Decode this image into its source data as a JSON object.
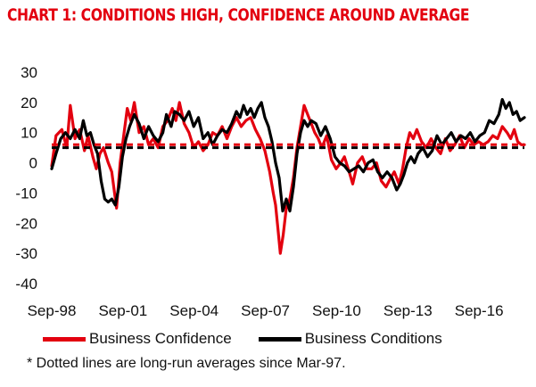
{
  "chart_data": {
    "type": "line",
    "title": "CHART 1: CONDITIONS HIGH, CONFIDENCE AROUND AVERAGE",
    "xlabel": "",
    "ylabel": "",
    "ylim": [
      -40,
      30
    ],
    "yticks": [
      30,
      20,
      10,
      0,
      -10,
      -20,
      -30,
      -40
    ],
    "xlim": [
      1998.67,
      2018.58
    ],
    "xticks": [
      {
        "label": "Sep-98",
        "value": 1998.67
      },
      {
        "label": "Sep-01",
        "value": 2001.67
      },
      {
        "label": "Sep-04",
        "value": 2004.67
      },
      {
        "label": "Sep-07",
        "value": 2007.67
      },
      {
        "label": "Sep-10",
        "value": 2010.67
      },
      {
        "label": "Sep-13",
        "value": 2013.67
      },
      {
        "label": "Sep-16",
        "value": 2016.67
      }
    ],
    "grid": false,
    "legend_position": "bottom",
    "series": [
      {
        "name": "Business Confidence",
        "color": "#e3000f",
        "average": 6,
        "points": [
          [
            1998.67,
            -1
          ],
          [
            1998.85,
            9
          ],
          [
            1999.1,
            11
          ],
          [
            1999.3,
            5
          ],
          [
            1999.45,
            19
          ],
          [
            1999.65,
            8
          ],
          [
            1999.85,
            11
          ],
          [
            2000.05,
            4
          ],
          [
            2000.2,
            9
          ],
          [
            2000.4,
            2
          ],
          [
            2000.55,
            -2
          ],
          [
            2000.7,
            3
          ],
          [
            2000.85,
            5
          ],
          [
            2001.05,
            0
          ],
          [
            2001.2,
            -3
          ],
          [
            2001.4,
            -15
          ],
          [
            2001.55,
            0
          ],
          [
            2001.7,
            9
          ],
          [
            2001.85,
            18
          ],
          [
            2002.0,
            14
          ],
          [
            2002.15,
            20
          ],
          [
            2002.35,
            10
          ],
          [
            2002.55,
            12
          ],
          [
            2002.75,
            6
          ],
          [
            2002.95,
            8
          ],
          [
            2003.15,
            5
          ],
          [
            2003.35,
            12
          ],
          [
            2003.55,
            14
          ],
          [
            2003.75,
            18
          ],
          [
            2003.9,
            14
          ],
          [
            2004.05,
            20
          ],
          [
            2004.25,
            13
          ],
          [
            2004.45,
            10
          ],
          [
            2004.65,
            5
          ],
          [
            2004.85,
            7
          ],
          [
            2005.05,
            4
          ],
          [
            2005.25,
            6
          ],
          [
            2005.45,
            10
          ],
          [
            2005.65,
            9
          ],
          [
            2005.85,
            12
          ],
          [
            2006.05,
            8
          ],
          [
            2006.25,
            12
          ],
          [
            2006.45,
            15
          ],
          [
            2006.65,
            12
          ],
          [
            2006.85,
            14
          ],
          [
            2007.05,
            15
          ],
          [
            2007.25,
            11
          ],
          [
            2007.45,
            8
          ],
          [
            2007.65,
            4
          ],
          [
            2007.85,
            -3
          ],
          [
            2008.0,
            -10
          ],
          [
            2008.1,
            -14
          ],
          [
            2008.2,
            -22
          ],
          [
            2008.3,
            -30
          ],
          [
            2008.42,
            -24
          ],
          [
            2008.55,
            -15
          ],
          [
            2008.7,
            -12
          ],
          [
            2008.85,
            -5
          ],
          [
            2009.0,
            5
          ],
          [
            2009.15,
            12
          ],
          [
            2009.3,
            19
          ],
          [
            2009.45,
            16
          ],
          [
            2009.6,
            13
          ],
          [
            2009.75,
            10
          ],
          [
            2009.9,
            8
          ],
          [
            2010.05,
            5
          ],
          [
            2010.25,
            9
          ],
          [
            2010.45,
            1
          ],
          [
            2010.65,
            -2
          ],
          [
            2010.85,
            0
          ],
          [
            2011.0,
            2
          ],
          [
            2011.2,
            -3
          ],
          [
            2011.35,
            -7
          ],
          [
            2011.55,
            0
          ],
          [
            2011.75,
            2
          ],
          [
            2011.95,
            -2
          ],
          [
            2012.15,
            -2
          ],
          [
            2012.35,
            0
          ],
          [
            2012.55,
            -6
          ],
          [
            2012.75,
            -8
          ],
          [
            2012.95,
            -5
          ],
          [
            2013.1,
            -3
          ],
          [
            2013.3,
            -7
          ],
          [
            2013.45,
            -2
          ],
          [
            2013.6,
            5
          ],
          [
            2013.75,
            10
          ],
          [
            2013.9,
            8
          ],
          [
            2014.05,
            11
          ],
          [
            2014.25,
            7
          ],
          [
            2014.45,
            5
          ],
          [
            2014.65,
            8
          ],
          [
            2014.85,
            5
          ],
          [
            2015.05,
            3
          ],
          [
            2015.25,
            8
          ],
          [
            2015.45,
            4
          ],
          [
            2015.65,
            6
          ],
          [
            2015.85,
            9
          ],
          [
            2016.05,
            5
          ],
          [
            2016.25,
            8
          ],
          [
            2016.45,
            6
          ],
          [
            2016.65,
            7
          ],
          [
            2016.85,
            6
          ],
          [
            2017.05,
            7
          ],
          [
            2017.25,
            9
          ],
          [
            2017.45,
            8
          ],
          [
            2017.65,
            12
          ],
          [
            2017.85,
            10
          ],
          [
            2018.0,
            8
          ],
          [
            2018.15,
            11
          ],
          [
            2018.3,
            7
          ],
          [
            2018.45,
            6
          ],
          [
            2018.58,
            6
          ]
        ]
      },
      {
        "name": "Business Conditions",
        "color": "#000000",
        "average": 5,
        "points": [
          [
            1998.67,
            -2
          ],
          [
            1998.85,
            3
          ],
          [
            1999.05,
            8
          ],
          [
            1999.25,
            10
          ],
          [
            1999.45,
            8
          ],
          [
            1999.65,
            11
          ],
          [
            1999.85,
            8
          ],
          [
            2000.0,
            14
          ],
          [
            2000.15,
            9
          ],
          [
            2000.3,
            10
          ],
          [
            2000.45,
            6
          ],
          [
            2000.6,
            3
          ],
          [
            2000.75,
            -6
          ],
          [
            2000.9,
            -12
          ],
          [
            2001.05,
            -13
          ],
          [
            2001.2,
            -12
          ],
          [
            2001.35,
            -14
          ],
          [
            2001.5,
            -8
          ],
          [
            2001.65,
            2
          ],
          [
            2001.8,
            8
          ],
          [
            2001.95,
            12
          ],
          [
            2002.15,
            16
          ],
          [
            2002.35,
            13
          ],
          [
            2002.55,
            8
          ],
          [
            2002.75,
            12
          ],
          [
            2002.95,
            9
          ],
          [
            2003.15,
            7
          ],
          [
            2003.35,
            10
          ],
          [
            2003.5,
            16
          ],
          [
            2003.7,
            12
          ],
          [
            2003.85,
            17
          ],
          [
            2004.05,
            16
          ],
          [
            2004.25,
            14
          ],
          [
            2004.45,
            17
          ],
          [
            2004.65,
            12
          ],
          [
            2004.85,
            15
          ],
          [
            2005.05,
            8
          ],
          [
            2005.25,
            10
          ],
          [
            2005.45,
            6
          ],
          [
            2005.65,
            9
          ],
          [
            2005.85,
            11
          ],
          [
            2006.05,
            10
          ],
          [
            2006.25,
            13
          ],
          [
            2006.45,
            17
          ],
          [
            2006.6,
            15
          ],
          [
            2006.75,
            19
          ],
          [
            2006.9,
            16
          ],
          [
            2007.05,
            18
          ],
          [
            2007.2,
            15
          ],
          [
            2007.35,
            18
          ],
          [
            2007.5,
            20
          ],
          [
            2007.65,
            15
          ],
          [
            2007.8,
            12
          ],
          [
            2007.95,
            7
          ],
          [
            2008.1,
            0
          ],
          [
            2008.25,
            -5
          ],
          [
            2008.4,
            -16
          ],
          [
            2008.55,
            -12
          ],
          [
            2008.7,
            -16
          ],
          [
            2008.85,
            -8
          ],
          [
            2009.0,
            3
          ],
          [
            2009.15,
            10
          ],
          [
            2009.3,
            14
          ],
          [
            2009.45,
            12
          ],
          [
            2009.6,
            14
          ],
          [
            2009.8,
            13
          ],
          [
            2010.0,
            9
          ],
          [
            2010.2,
            12
          ],
          [
            2010.4,
            8
          ],
          [
            2010.6,
            2
          ],
          [
            2010.8,
            0
          ],
          [
            2011.0,
            -1
          ],
          [
            2011.2,
            -3
          ],
          [
            2011.4,
            -2
          ],
          [
            2011.6,
            -1
          ],
          [
            2011.8,
            -3
          ],
          [
            2012.0,
            0
          ],
          [
            2012.2,
            1
          ],
          [
            2012.4,
            -3
          ],
          [
            2012.6,
            -5
          ],
          [
            2012.8,
            -3
          ],
          [
            2013.0,
            -5
          ],
          [
            2013.2,
            -9
          ],
          [
            2013.35,
            -7
          ],
          [
            2013.5,
            -4
          ],
          [
            2013.65,
            0
          ],
          [
            2013.8,
            2
          ],
          [
            2013.95,
            0
          ],
          [
            2014.1,
            3
          ],
          [
            2014.3,
            5
          ],
          [
            2014.5,
            2
          ],
          [
            2014.7,
            4
          ],
          [
            2014.9,
            9
          ],
          [
            2015.1,
            6
          ],
          [
            2015.3,
            8
          ],
          [
            2015.5,
            10
          ],
          [
            2015.7,
            7
          ],
          [
            2015.9,
            9
          ],
          [
            2016.1,
            8
          ],
          [
            2016.3,
            10
          ],
          [
            2016.5,
            7
          ],
          [
            2016.7,
            9
          ],
          [
            2016.9,
            10
          ],
          [
            2017.1,
            14
          ],
          [
            2017.3,
            13
          ],
          [
            2017.5,
            16
          ],
          [
            2017.65,
            21
          ],
          [
            2017.8,
            18
          ],
          [
            2017.95,
            20
          ],
          [
            2018.1,
            16
          ],
          [
            2018.25,
            17
          ],
          [
            2018.4,
            14
          ],
          [
            2018.58,
            15
          ]
        ]
      }
    ]
  },
  "legend": {
    "confidence_label": "Business Confidence",
    "conditions_label": "Business Conditions"
  },
  "footnote": "* Dotted lines are long-run  averages since Mar-97."
}
